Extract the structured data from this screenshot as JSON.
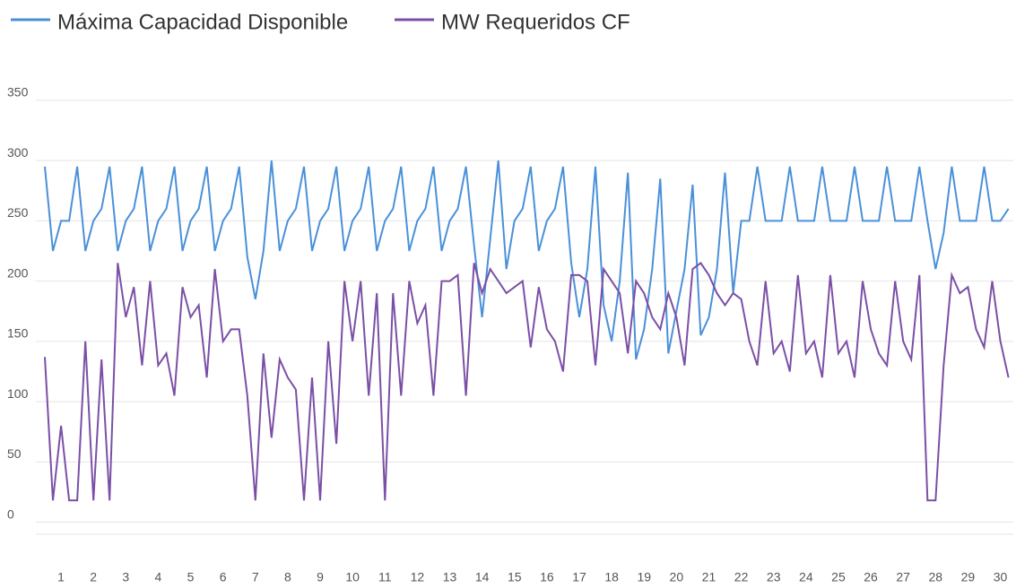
{
  "chart_data": {
    "type": "line",
    "x": [
      0.5,
      0.75,
      1,
      1.25,
      1.5,
      1.75,
      2,
      2.25,
      2.5,
      2.75,
      3,
      3.25,
      3.5,
      3.75,
      4,
      4.25,
      4.5,
      4.75,
      5,
      5.25,
      5.5,
      5.75,
      6,
      6.25,
      6.5,
      6.75,
      7,
      7.25,
      7.5,
      7.75,
      8,
      8.25,
      8.5,
      8.75,
      9,
      9.25,
      9.5,
      9.75,
      10,
      10.25,
      10.5,
      10.75,
      11,
      11.25,
      11.5,
      11.75,
      12,
      12.25,
      12.5,
      12.75,
      13,
      13.25,
      13.5,
      13.75,
      14,
      14.25,
      14.5,
      14.75,
      15,
      15.25,
      15.5,
      15.75,
      16,
      16.25,
      16.5,
      16.75,
      17,
      17.25,
      17.5,
      17.75,
      18,
      18.25,
      18.5,
      18.75,
      19,
      19.25,
      19.5,
      19.75,
      20,
      20.25,
      20.5,
      20.75,
      21,
      21.25,
      21.5,
      21.75,
      22,
      22.25,
      22.5,
      22.75,
      23,
      23.25,
      23.5,
      23.75,
      24,
      24.25,
      24.5,
      24.75,
      25,
      25.25,
      25.5,
      25.75,
      26,
      26.25,
      26.5,
      26.75,
      27,
      27.25,
      27.5,
      27.75,
      28,
      28.25,
      28.5,
      28.75,
      29,
      29.25,
      29.5,
      29.75,
      30,
      30.25
    ],
    "series": [
      {
        "name": "Máxima Capacidad Disponible",
        "color": "#4a90d9",
        "values": [
          295,
          225,
          250,
          250,
          295,
          225,
          250,
          260,
          295,
          225,
          250,
          260,
          295,
          225,
          250,
          260,
          295,
          225,
          250,
          260,
          295,
          225,
          250,
          260,
          295,
          220,
          185,
          225,
          300,
          225,
          250,
          260,
          295,
          225,
          250,
          260,
          295,
          225,
          250,
          260,
          295,
          225,
          250,
          260,
          295,
          225,
          250,
          260,
          295,
          225,
          250,
          260,
          295,
          230,
          170,
          235,
          300,
          210,
          250,
          260,
          295,
          225,
          250,
          260,
          295,
          215,
          170,
          210,
          295,
          180,
          150,
          200,
          290,
          135,
          160,
          210,
          285,
          140,
          175,
          210,
          280,
          155,
          170,
          210,
          290,
          190,
          250,
          250,
          295,
          250,
          250,
          250,
          295,
          250,
          250,
          250,
          295,
          250,
          250,
          250,
          295,
          250,
          250,
          250,
          295,
          250,
          250,
          250,
          295,
          250,
          210,
          240,
          295,
          250,
          250,
          250,
          295,
          250,
          250,
          260
        ]
      },
      {
        "name": "MW Requeridos CF",
        "color": "#7b4fa6",
        "values": [
          137,
          18,
          80,
          18,
          18,
          150,
          18,
          135,
          18,
          215,
          170,
          195,
          130,
          200,
          130,
          140,
          105,
          195,
          170,
          180,
          120,
          210,
          150,
          160,
          160,
          105,
          18,
          140,
          70,
          135,
          120,
          110,
          18,
          120,
          18,
          150,
          65,
          200,
          150,
          200,
          105,
          190,
          18,
          190,
          105,
          200,
          165,
          180,
          105,
          200,
          200,
          205,
          105,
          215,
          190,
          210,
          200,
          190,
          195,
          200,
          145,
          195,
          160,
          150,
          125,
          205,
          205,
          200,
          130,
          210,
          200,
          190,
          140,
          200,
          190,
          170,
          160,
          190,
          170,
          130,
          210,
          215,
          205,
          190,
          180,
          190,
          185,
          150,
          130,
          200,
          140,
          150,
          125,
          205,
          140,
          150,
          120,
          205,
          140,
          150,
          120,
          200,
          160,
          140,
          130,
          200,
          150,
          135,
          205,
          18,
          18,
          130,
          205,
          190,
          195,
          160,
          145,
          200,
          150,
          120
        ]
      }
    ],
    "xlim": [
      0.5,
      30.4
    ],
    "xticks": [
      1,
      2,
      3,
      4,
      5,
      6,
      7,
      8,
      9,
      10,
      11,
      12,
      13,
      14,
      15,
      16,
      17,
      18,
      19,
      20,
      21,
      22,
      23,
      24,
      25,
      26,
      27,
      28,
      29,
      30
    ],
    "ylim": [
      -10,
      370
    ],
    "yticks": [
      0,
      50,
      100,
      150,
      200,
      250,
      300,
      350
    ],
    "grid": true
  }
}
